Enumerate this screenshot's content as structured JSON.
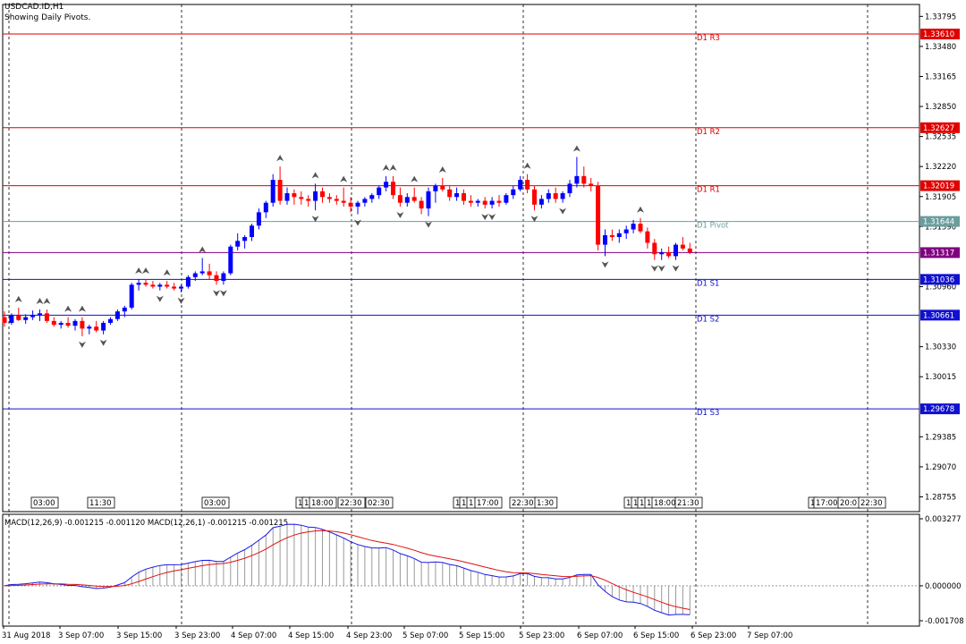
{
  "window": {
    "symbol_title": "USDCAD.ID,H1",
    "indicator_note": "Showing Daily Pivots."
  },
  "price_axis": {
    "ticks": [
      "1.33795",
      "1.33480",
      "1.33165",
      "1.32850",
      "1.32535",
      "1.32220",
      "1.31905",
      "1.31590",
      "1.30960",
      "1.30330",
      "1.30015",
      "1.29385",
      "1.29070",
      "1.28755"
    ]
  },
  "pivot_levels": [
    {
      "name": "D1 R3",
      "price": "1.33610",
      "color": "#e00000"
    },
    {
      "name": "D1 R2",
      "price": "1.32627",
      "color": "#e00000"
    },
    {
      "name": "D1 R1",
      "price": "1.32019",
      "color": "#e00000"
    },
    {
      "name": "D1 Pivot",
      "price": "1.31644",
      "color": "#6a9e9e"
    },
    {
      "name": "D1 S1",
      "price": "1.31036",
      "color": "#1010d0"
    },
    {
      "name": "D1 S2",
      "price": "1.30661",
      "color": "#1010d0"
    },
    {
      "name": "D1 S3",
      "price": "1.29678",
      "color": "#1010d0"
    }
  ],
  "current_price": {
    "value": "1.31317",
    "color": "#800080"
  },
  "session_markers": [
    "03:00",
    "11:30",
    "03:00",
    "1",
    "1",
    "18:00",
    "22:30",
    "02:30",
    "1",
    "1",
    "1",
    "17:00",
    "22:30",
    "1:30",
    "1",
    "1",
    "1",
    "1",
    "18:00",
    "21:30",
    "1",
    "17:00",
    "20:0",
    "22:30"
  ],
  "macd": {
    "label": "MACD(12,26,9) -0.001215 -0.001120 MACD(12,26,1) -0.001215 -0.001215",
    "ticks": [
      "0.003277",
      "0.000000",
      "-0.001708"
    ]
  },
  "time_axis": {
    "labels": [
      "31 Aug 2018",
      "3 Sep 07:00",
      "3 Sep 15:00",
      "3 Sep 23:00",
      "4 Sep 07:00",
      "4 Sep 15:00",
      "4 Sep 23:00",
      "5 Sep 07:00",
      "5 Sep 15:00",
      "5 Sep 23:00",
      "6 Sep 07:00",
      "6 Sep 15:00",
      "6 Sep 23:00",
      "7 Sep 07:00"
    ]
  },
  "colors": {
    "bull_candle": "#0000ff",
    "bear_candle": "#ff0000",
    "macd_line": "#1a1ae6",
    "signal_line": "#e01010",
    "histogram": "#9a9a9a"
  },
  "chart_data": {
    "type": "candlestick",
    "timeframe": "H1",
    "ylim": [
      1.286,
      1.3392
    ],
    "candles": [
      [
        1.3064,
        1.307,
        1.3054,
        1.3058
      ],
      [
        1.3058,
        1.3068,
        1.3056,
        1.3066
      ],
      [
        1.3066,
        1.3074,
        1.306,
        1.3061
      ],
      [
        1.3061,
        1.3067,
        1.3057,
        1.3064
      ],
      [
        1.3064,
        1.3071,
        1.3061,
        1.3066
      ],
      [
        1.3066,
        1.3072,
        1.306,
        1.3068
      ],
      [
        1.3068,
        1.3072,
        1.3058,
        1.306
      ],
      [
        1.306,
        1.3064,
        1.3054,
        1.3056
      ],
      [
        1.3056,
        1.306,
        1.3052,
        1.3058
      ],
      [
        1.3058,
        1.3064,
        1.3053,
        1.3055
      ],
      [
        1.3055,
        1.3062,
        1.305,
        1.306
      ],
      [
        1.306,
        1.3064,
        1.3044,
        1.3052
      ],
      [
        1.3052,
        1.3056,
        1.3046,
        1.3054
      ],
      [
        1.3054,
        1.306,
        1.3048,
        1.305
      ],
      [
        1.305,
        1.306,
        1.3046,
        1.3058
      ],
      [
        1.3058,
        1.3064,
        1.3056,
        1.3062
      ],
      [
        1.3062,
        1.3072,
        1.306,
        1.307
      ],
      [
        1.307,
        1.3076,
        1.3064,
        1.3074
      ],
      [
        1.3074,
        1.31,
        1.3072,
        1.3098
      ],
      [
        1.3098,
        1.3104,
        1.3092,
        1.31
      ],
      [
        1.31,
        1.3104,
        1.3096,
        1.3098
      ],
      [
        1.3098,
        1.3102,
        1.3094,
        1.3096
      ],
      [
        1.3096,
        1.31,
        1.3092,
        1.3098
      ],
      [
        1.3098,
        1.3102,
        1.3094,
        1.3096
      ],
      [
        1.3096,
        1.31,
        1.3092,
        1.3094
      ],
      [
        1.3094,
        1.3098,
        1.309,
        1.3096
      ],
      [
        1.3096,
        1.3108,
        1.3094,
        1.3106
      ],
      [
        1.3106,
        1.3112,
        1.3102,
        1.311
      ],
      [
        1.311,
        1.3126,
        1.3108,
        1.3112
      ],
      [
        1.3112,
        1.312,
        1.3104,
        1.3108
      ],
      [
        1.3108,
        1.3112,
        1.3098,
        1.3102
      ],
      [
        1.3102,
        1.3112,
        1.3098,
        1.311
      ],
      [
        1.311,
        1.314,
        1.3108,
        1.3138
      ],
      [
        1.3138,
        1.3152,
        1.3134,
        1.3144
      ],
      [
        1.3144,
        1.315,
        1.3136,
        1.3148
      ],
      [
        1.3148,
        1.3162,
        1.3144,
        1.316
      ],
      [
        1.316,
        1.3178,
        1.3156,
        1.3174
      ],
      [
        1.3174,
        1.3186,
        1.3168,
        1.3184
      ],
      [
        1.3184,
        1.3214,
        1.318,
        1.3208
      ],
      [
        1.3208,
        1.3222,
        1.3182,
        1.3186
      ],
      [
        1.3186,
        1.32,
        1.3182,
        1.3194
      ],
      [
        1.3194,
        1.3198,
        1.3182,
        1.319
      ],
      [
        1.319,
        1.3196,
        1.3182,
        1.3188
      ],
      [
        1.3188,
        1.3192,
        1.318,
        1.3186
      ],
      [
        1.3186,
        1.3204,
        1.3176,
        1.3196
      ],
      [
        1.3196,
        1.32,
        1.3184,
        1.319
      ],
      [
        1.319,
        1.3194,
        1.3184,
        1.3188
      ],
      [
        1.3188,
        1.3192,
        1.3182,
        1.3186
      ],
      [
        1.3186,
        1.32,
        1.318,
        1.3184
      ],
      [
        1.3184,
        1.319,
        1.3174,
        1.318
      ],
      [
        1.318,
        1.3186,
        1.3172,
        1.3184
      ],
      [
        1.3184,
        1.319,
        1.318,
        1.3188
      ],
      [
        1.3188,
        1.3194,
        1.3184,
        1.3192
      ],
      [
        1.3192,
        1.3202,
        1.3188,
        1.32
      ],
      [
        1.32,
        1.3212,
        1.3196,
        1.3206
      ],
      [
        1.3206,
        1.3212,
        1.3188,
        1.3192
      ],
      [
        1.3192,
        1.32,
        1.318,
        1.3184
      ],
      [
        1.3184,
        1.3194,
        1.318,
        1.319
      ],
      [
        1.319,
        1.32,
        1.3184,
        1.3186
      ],
      [
        1.3186,
        1.319,
        1.3172,
        1.3178
      ],
      [
        1.3178,
        1.32,
        1.317,
        1.3196
      ],
      [
        1.3196,
        1.3204,
        1.3184,
        1.3202
      ],
      [
        1.3202,
        1.321,
        1.3196,
        1.3198
      ],
      [
        1.3198,
        1.3202,
        1.3186,
        1.319
      ],
      [
        1.319,
        1.32,
        1.3186,
        1.3194
      ],
      [
        1.3194,
        1.3198,
        1.3182,
        1.3186
      ],
      [
        1.3186,
        1.3192,
        1.318,
        1.3184
      ],
      [
        1.3184,
        1.3188,
        1.318,
        1.3186
      ],
      [
        1.3186,
        1.319,
        1.3178,
        1.3182
      ],
      [
        1.3182,
        1.319,
        1.3178,
        1.3186
      ],
      [
        1.3186,
        1.3192,
        1.318,
        1.3184
      ],
      [
        1.3184,
        1.3194,
        1.3182,
        1.3192
      ],
      [
        1.3192,
        1.3202,
        1.3188,
        1.3198
      ],
      [
        1.3198,
        1.3212,
        1.3196,
        1.3208
      ],
      [
        1.3208,
        1.3214,
        1.3194,
        1.3198
      ],
      [
        1.3198,
        1.3202,
        1.3176,
        1.3182
      ],
      [
        1.3182,
        1.3192,
        1.3178,
        1.3188
      ],
      [
        1.3188,
        1.3198,
        1.3184,
        1.3194
      ],
      [
        1.3194,
        1.32,
        1.3184,
        1.3188
      ],
      [
        1.3188,
        1.3196,
        1.3184,
        1.3194
      ],
      [
        1.3194,
        1.3208,
        1.319,
        1.3204
      ],
      [
        1.3204,
        1.3232,
        1.32,
        1.3212
      ],
      [
        1.3212,
        1.3222,
        1.32,
        1.3204
      ],
      [
        1.3204,
        1.321,
        1.3196,
        1.3202
      ],
      [
        1.3202,
        1.3206,
        1.3134,
        1.314
      ],
      [
        1.314,
        1.3156,
        1.3128,
        1.315
      ],
      [
        1.315,
        1.3156,
        1.3144,
        1.3148
      ],
      [
        1.3148,
        1.3156,
        1.3142,
        1.3152
      ],
      [
        1.3152,
        1.316,
        1.3146,
        1.3156
      ],
      [
        1.3156,
        1.3166,
        1.3152,
        1.3162
      ],
      [
        1.3162,
        1.3168,
        1.3152,
        1.3154
      ],
      [
        1.3154,
        1.3158,
        1.3136,
        1.3142
      ],
      [
        1.3142,
        1.3146,
        1.3124,
        1.313
      ],
      [
        1.313,
        1.3136,
        1.3124,
        1.3132
      ],
      [
        1.3132,
        1.3138,
        1.3126,
        1.3128
      ],
      [
        1.3128,
        1.3142,
        1.3124,
        1.314
      ],
      [
        1.314,
        1.3148,
        1.3134,
        1.3136
      ],
      [
        1.3136,
        1.3142,
        1.313,
        1.3132
      ]
    ]
  }
}
